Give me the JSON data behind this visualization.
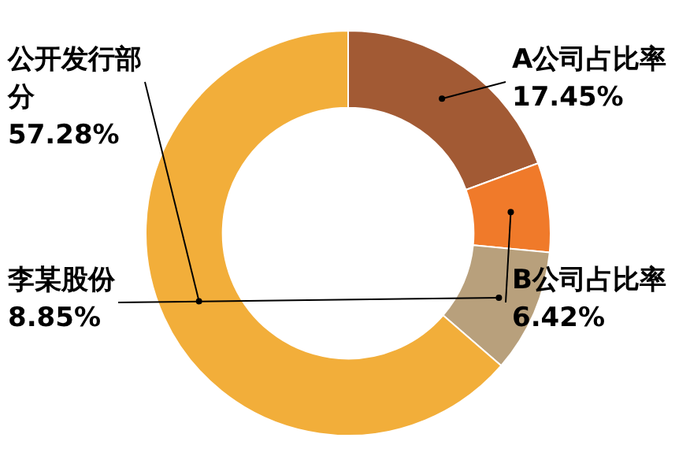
{
  "chart_data": {
    "type": "donut",
    "categories": [
      "A公司占比率",
      "B公司占比率",
      "李某股份",
      "公开发行部分"
    ],
    "values": [
      17.45,
      6.42,
      8.85,
      57.28
    ],
    "value_labels": [
      "17.45%",
      "6.42%",
      "8.85%",
      "57.28%"
    ],
    "colors": [
      "#a25a34",
      "#f07a2a",
      "#b8a07c",
      "#f2ae3a"
    ],
    "legend": false
  }
}
